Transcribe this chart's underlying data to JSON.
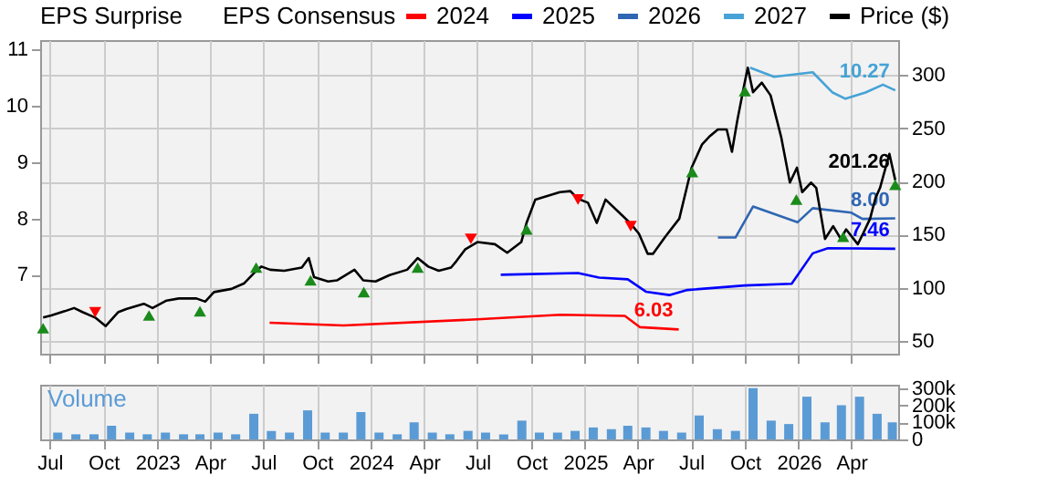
{
  "chart_data": [
    {
      "type": "line",
      "legend_title": "EPS Consensus",
      "annotations": [
        "EPS Surprise"
      ],
      "legend": "top",
      "grid": true,
      "tick_labels": "y",
      "xlim": [
        "2022-06-15",
        "2026-06-20"
      ],
      "xticks": [
        {
          "value": "2022-07-01",
          "label": null
        },
        {
          "value": "2022-10-01",
          "label": null
        },
        {
          "value": "2023-01-01",
          "label": null
        },
        {
          "value": "2023-04-01",
          "label": null
        },
        {
          "value": "2023-07-01",
          "label": null
        },
        {
          "value": "2023-10-01",
          "label": null
        },
        {
          "value": "2024-01-01",
          "label": null
        },
        {
          "value": "2024-04-01",
          "label": null
        },
        {
          "value": "2024-07-01",
          "label": null
        },
        {
          "value": "2024-10-01",
          "label": null
        },
        {
          "value": "2025-01-01",
          "label": null
        },
        {
          "value": "2025-04-01",
          "label": null
        },
        {
          "value": "2025-07-01",
          "label": null
        },
        {
          "value": "2025-10-01",
          "label": null
        },
        {
          "value": "2026-01-01",
          "label": null
        },
        {
          "value": "2026-04-01",
          "label": null
        }
      ],
      "ylim": [
        5.6,
        11.16
      ],
      "yticks": [
        7,
        8,
        9,
        10,
        11
      ],
      "y2lim": [
        38,
        333
      ],
      "y2ticks": [
        50,
        100,
        150,
        200,
        250,
        300
      ],
      "series": [
        {
          "name": "2024",
          "color": "#ff0000",
          "axis": "y",
          "x": [
            "2023-07-12",
            "2023-11-15",
            "2024-07-01",
            "2024-11-20",
            "2025-03-10",
            "2025-04-05",
            "2025-06-10"
          ],
          "values": [
            6.15,
            6.1,
            6.21,
            6.29,
            6.27,
            6.07,
            6.03
          ],
          "value_labels": [
            null,
            null,
            null,
            null,
            null,
            null,
            "6.03"
          ]
        },
        {
          "name": "2025",
          "color": "#0000ff",
          "axis": "y",
          "x": [
            "2024-08-10",
            "2024-12-20",
            "2025-01-25",
            "2025-03-15",
            "2025-04-15",
            "2025-05-25",
            "2025-06-25",
            "2025-10-01",
            "2025-12-20",
            "2026-01-25",
            "2026-02-20",
            "2026-06-15"
          ],
          "values": [
            7.0,
            7.03,
            6.95,
            6.92,
            6.7,
            6.64,
            6.73,
            6.81,
            6.84,
            7.38,
            7.47,
            7.46
          ],
          "value_labels": [
            null,
            null,
            null,
            null,
            null,
            null,
            null,
            null,
            null,
            null,
            null,
            "7.46"
          ]
        },
        {
          "name": "2026",
          "color": "#2f66b3",
          "axis": "y",
          "x": [
            "2025-08-16",
            "2025-09-15",
            "2025-10-15",
            "2025-12-30",
            "2026-01-25",
            "2026-04-01",
            "2026-04-20",
            "2026-06-15"
          ],
          "values": [
            7.66,
            7.66,
            8.21,
            7.93,
            8.18,
            8.1,
            7.99,
            8.0
          ],
          "value_labels": [
            null,
            null,
            null,
            null,
            null,
            null,
            null,
            "8.00"
          ]
        },
        {
          "name": "2027",
          "color": "#45a3d6",
          "axis": "y",
          "x": [
            "2025-10-10",
            "2025-11-20",
            "2026-01-25",
            "2026-02-28",
            "2026-03-22",
            "2026-04-25",
            "2026-05-25",
            "2026-06-15"
          ],
          "values": [
            10.67,
            10.51,
            10.59,
            10.23,
            10.12,
            10.23,
            10.37,
            10.27
          ],
          "value_labels": [
            null,
            null,
            null,
            null,
            null,
            null,
            null,
            "10.27"
          ]
        },
        {
          "name": "Price ($)",
          "color": "#000000",
          "axis": "y2",
          "x": [
            "2022-06-20",
            "2022-07-04",
            "2022-07-27",
            "2022-08-12",
            "2022-08-27",
            "2022-09-17",
            "2022-10-05",
            "2022-10-26",
            "2022-11-09",
            "2022-12-09",
            "2022-12-24",
            "2023-01-17",
            "2023-02-07",
            "2023-03-09",
            "2023-03-24",
            "2023-04-08",
            "2023-05-08",
            "2023-05-29",
            "2023-06-19",
            "2023-06-28",
            "2023-07-13",
            "2023-08-06",
            "2023-09-05",
            "2023-09-17",
            "2023-09-26",
            "2023-10-20",
            "2023-11-04",
            "2023-12-04",
            "2023-12-19",
            "2024-01-09",
            "2024-02-02",
            "2024-03-03",
            "2024-03-21",
            "2024-04-08",
            "2024-04-26",
            "2024-05-17",
            "2024-05-26",
            "2024-06-10",
            "2024-07-01",
            "2024-07-31",
            "2024-08-21",
            "2024-09-14",
            "2024-09-23",
            "2024-10-08",
            "2024-11-19",
            "2024-12-07",
            "2024-12-19",
            "2025-01-06",
            "2025-01-21",
            "2025-02-05",
            "2025-02-26",
            "2025-03-19",
            "2025-04-03",
            "2025-04-18",
            "2025-04-27",
            "2025-05-18",
            "2025-06-11",
            "2025-07-02",
            "2025-07-20",
            "2025-08-01",
            "2025-08-16",
            "2025-08-31",
            "2025-09-09",
            "2025-09-18",
            "2025-09-30",
            "2025-10-06",
            "2025-10-15",
            "2025-10-30",
            "2025-11-14",
            "2025-12-02",
            "2025-12-17",
            "2025-12-29",
            "2026-01-07",
            "2026-01-22",
            "2026-01-31",
            "2026-02-15",
            "2026-03-01",
            "2026-03-14",
            "2026-03-23",
            "2026-04-12",
            "2026-04-21",
            "2026-05-03",
            "2026-05-12",
            "2026-05-20",
            "2026-06-05",
            "2026-06-15"
          ],
          "values": [
            72,
            74,
            78,
            81,
            77,
            72,
            64,
            77,
            80,
            85,
            81,
            88,
            90,
            90,
            87,
            96,
            99,
            104,
            116,
            120,
            117,
            116,
            119,
            128,
            110,
            106,
            107,
            117,
            107,
            106,
            112,
            117,
            128,
            120,
            116,
            119,
            125,
            136,
            143,
            141,
            133,
            143,
            161,
            183,
            190,
            191,
            184,
            180,
            161,
            183,
            172,
            161,
            151,
            132,
            132,
            148,
            165,
            213,
            235,
            242,
            249,
            249,
            228,
            257,
            291,
            307,
            284,
            293,
            281,
            242,
            199,
            213,
            190,
            199,
            194,
            146,
            158,
            146,
            155,
            141,
            151,
            165,
            184,
            194,
            226,
            201.26
          ],
          "value_labels": [
            null,
            null,
            null,
            null,
            null,
            null,
            null,
            null,
            null,
            null,
            null,
            null,
            null,
            null,
            null,
            null,
            null,
            null,
            null,
            null,
            null,
            null,
            null,
            null,
            null,
            null,
            null,
            null,
            null,
            null,
            null,
            null,
            null,
            null,
            null,
            null,
            null,
            null,
            null,
            null,
            null,
            null,
            null,
            null,
            null,
            null,
            null,
            null,
            null,
            null,
            null,
            null,
            null,
            null,
            null,
            null,
            null,
            null,
            null,
            null,
            null,
            null,
            null,
            null,
            null,
            null,
            null,
            null,
            null,
            null,
            null,
            null,
            null,
            null,
            null,
            null,
            null,
            null,
            null,
            null,
            null,
            null,
            null,
            null,
            null,
            "201.26"
          ]
        },
        {
          "type": "scatter",
          "marker": "triangle",
          "color": "#1a8a1a",
          "axis": "y2",
          "x": [
            "2022-06-20",
            "2022-12-18",
            "2023-03-15",
            "2023-06-19",
            "2023-09-20",
            "2023-12-20",
            "2024-03-21",
            "2024-09-23",
            "2025-07-03",
            "2025-10-01",
            "2025-12-28",
            "2026-03-18",
            "2026-06-15"
          ],
          "values": [
            62,
            74,
            78,
            119,
            107,
            96,
            119,
            155,
            209,
            285,
            183,
            148,
            197
          ]
        },
        {
          "type": "scatter",
          "marker": "triangle-down",
          "color": "#ff0000",
          "axis": "y2",
          "x": [
            "2022-09-17",
            "2024-06-20",
            "2024-12-20",
            "2025-03-20"
          ],
          "values": [
            77,
            146,
            183,
            158
          ]
        }
      ]
    },
    {
      "type": "bar",
      "title": "Volume",
      "grid": "x",
      "xlim": [
        "2022-06-15",
        "2026-06-20"
      ],
      "xticks": [
        {
          "value": "2022-07-01",
          "label": "Jul"
        },
        {
          "value": "2022-10-01",
          "label": "Oct"
        },
        {
          "value": "2023-01-01",
          "label": "2023"
        },
        {
          "value": "2023-04-01",
          "label": "Apr"
        },
        {
          "value": "2023-07-01",
          "label": "Jul"
        },
        {
          "value": "2023-10-01",
          "label": "Oct"
        },
        {
          "value": "2024-01-01",
          "label": "2024"
        },
        {
          "value": "2024-04-01",
          "label": "Apr"
        },
        {
          "value": "2024-07-01",
          "label": "Jul"
        },
        {
          "value": "2024-10-01",
          "label": "Oct"
        },
        {
          "value": "2025-01-01",
          "label": "2025"
        },
        {
          "value": "2025-04-01",
          "label": "Apr"
        },
        {
          "value": "2025-07-01",
          "label": "Jul"
        },
        {
          "value": "2025-10-01",
          "label": "Oct"
        },
        {
          "value": "2026-01-01",
          "label": "2026"
        },
        {
          "value": "2026-04-01",
          "label": "Apr"
        }
      ],
      "ylim": [
        0,
        320000
      ],
      "yticks": [
        0,
        {
          "value": 100000,
          "label": "100k"
        },
        {
          "value": 200000,
          "label": "200k"
        },
        {
          "value": 300000,
          "label": "300k"
        }
      ],
      "x": [
        "2022-07-15",
        "2022-08-15",
        "2022-09-15",
        "2022-10-15",
        "2022-11-15",
        "2022-12-15",
        "2023-01-15",
        "2023-02-15",
        "2023-03-15",
        "2023-04-15",
        "2023-05-15",
        "2023-06-15",
        "2023-07-15",
        "2023-08-15",
        "2023-09-15",
        "2023-10-15",
        "2023-11-15",
        "2023-12-15",
        "2024-01-15",
        "2024-02-15",
        "2024-03-15",
        "2024-04-15",
        "2024-05-15",
        "2024-06-15",
        "2024-07-15",
        "2024-08-15",
        "2024-09-15",
        "2024-10-15",
        "2024-11-15",
        "2024-12-15",
        "2025-01-15",
        "2025-02-15",
        "2025-03-15",
        "2025-04-15",
        "2025-05-15",
        "2025-06-15",
        "2025-07-15",
        "2025-08-15",
        "2025-09-15",
        "2025-10-15",
        "2025-11-15",
        "2025-12-15",
        "2026-01-15",
        "2026-02-15",
        "2026-03-15",
        "2026-04-15",
        "2026-05-15",
        "2026-06-10"
      ],
      "color": "#5b9bd5",
      "values": [
        40000,
        30000,
        30000,
        80000,
        40000,
        30000,
        40000,
        30000,
        30000,
        40000,
        30000,
        150000,
        50000,
        40000,
        170000,
        40000,
        40000,
        160000,
        40000,
        30000,
        100000,
        40000,
        30000,
        50000,
        40000,
        30000,
        110000,
        40000,
        40000,
        50000,
        70000,
        60000,
        80000,
        70000,
        50000,
        40000,
        140000,
        60000,
        50000,
        300000,
        110000,
        90000,
        250000,
        100000,
        200000,
        250000,
        150000,
        100000
      ]
    }
  ]
}
